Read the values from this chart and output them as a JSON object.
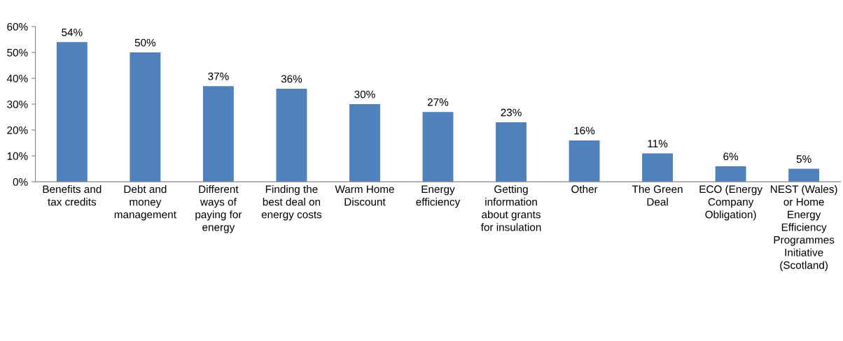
{
  "chart_data": {
    "type": "bar",
    "categories": [
      "Benefits and\ntax credits",
      "Debt and\nmoney\nmanagement",
      "Different\nways of\npaying for\nenergy",
      "Finding the\nbest deal on\nenergy costs",
      "Warm Home\nDiscount",
      "Energy\nefficiency",
      "Getting\ninformation\nabout grants\nfor insulation",
      "Other",
      "The Green\nDeal",
      "ECO (Energy\nCompany\nObligation)",
      "NEST (Wales)\nor Home\nEnergy\nEfficiency\nProgrammes\nInitiative\n(Scotland)"
    ],
    "values": [
      54,
      50,
      37,
      36,
      30,
      27,
      23,
      16,
      11,
      6,
      5
    ],
    "color": "#4f81bd",
    "value_labels": [
      "54%",
      "50%",
      "37%",
      "36%",
      "30%",
      "27%",
      "23%",
      "16%",
      "11%",
      "6%",
      "5%"
    ],
    "ylim": [
      0,
      60
    ],
    "yticks": [
      {
        "value": 0,
        "label": "0%"
      },
      {
        "value": 10,
        "label": "10%"
      },
      {
        "value": 20,
        "label": "20%"
      },
      {
        "value": 30,
        "label": "30%"
      },
      {
        "value": 40,
        "label": "40%"
      },
      {
        "value": 50,
        "label": "50%"
      },
      {
        "value": 60,
        "label": "60%"
      }
    ],
    "grid": false,
    "legend": false
  }
}
